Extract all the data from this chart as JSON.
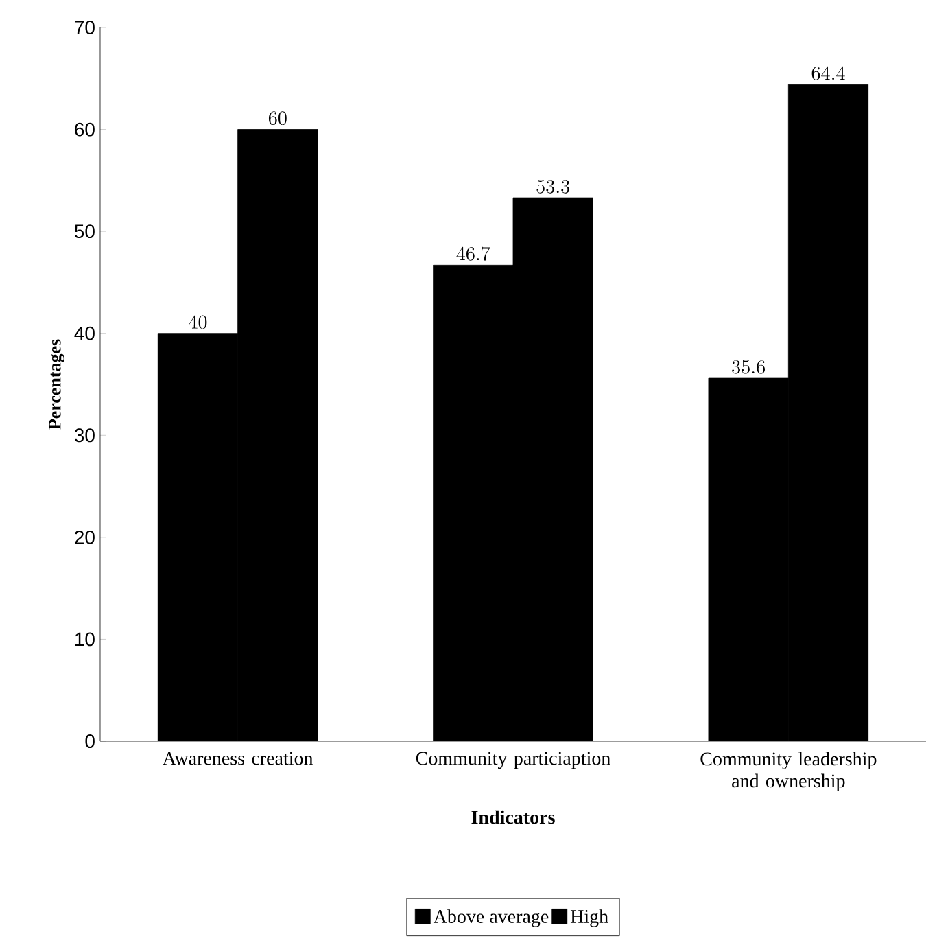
{
  "chart_data": {
    "type": "bar",
    "xlabel": "Indicators",
    "ylabel": "Percentages",
    "categories": [
      "Awareness creation",
      "Community particiaption",
      "Community leadership and ownership"
    ],
    "series": [
      {
        "name": "Above average",
        "color": "#000000",
        "values": [
          40,
          46.7,
          35.6
        ]
      },
      {
        "name": "High",
        "color": "#000000",
        "values": [
          60,
          53.3,
          64.4
        ]
      }
    ],
    "ylim": [
      0,
      70
    ],
    "yticks": [
      0,
      10,
      20,
      30,
      40,
      50,
      60,
      70
    ],
    "data_labels": true,
    "legend": "bottom",
    "grid": false
  }
}
